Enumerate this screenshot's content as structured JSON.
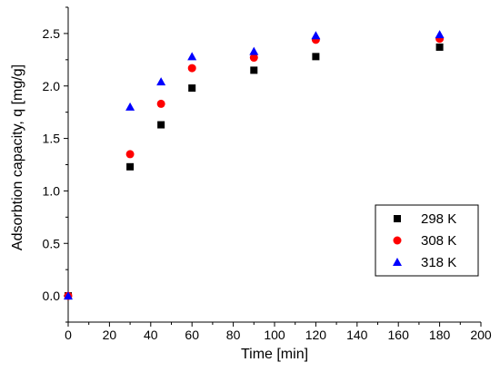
{
  "chart_data": {
    "type": "scatter",
    "xlabel": "Time [min]",
    "ylabel": "Adsorbtion capacity, q [mg/g]",
    "xlim": [
      0,
      200
    ],
    "ylim": [
      -0.25,
      2.75
    ],
    "xticks": [
      0,
      20,
      40,
      60,
      80,
      100,
      120,
      140,
      160,
      180,
      200
    ],
    "yticks": [
      0.0,
      0.5,
      1.0,
      1.5,
      2.0,
      2.5
    ],
    "xtick_labels": [
      "0",
      "20",
      "40",
      "60",
      "80",
      "100",
      "120",
      "140",
      "160",
      "180",
      "200"
    ],
    "ytick_labels": [
      "0.0",
      "0.5",
      "1.0",
      "1.5",
      "2.0",
      "2.5"
    ],
    "legend_position": "center-right",
    "grid": false,
    "series": [
      {
        "name": "298 K",
        "marker": "square",
        "color": "#000000",
        "x": [
          0,
          30,
          45,
          60,
          90,
          120,
          180
        ],
        "y": [
          0.0,
          1.23,
          1.63,
          1.98,
          2.15,
          2.28,
          2.37
        ]
      },
      {
        "name": "308 K",
        "marker": "circle",
        "color": "#ff0000",
        "x": [
          0,
          30,
          45,
          60,
          90,
          120,
          180
        ],
        "y": [
          0.0,
          1.35,
          1.83,
          2.17,
          2.27,
          2.44,
          2.45
        ]
      },
      {
        "name": "318 K",
        "marker": "triangle",
        "color": "#0000ff",
        "x": [
          0,
          30,
          45,
          60,
          90,
          120,
          180
        ],
        "y": [
          0.0,
          1.8,
          2.04,
          2.28,
          2.33,
          2.48,
          2.49
        ]
      }
    ]
  }
}
